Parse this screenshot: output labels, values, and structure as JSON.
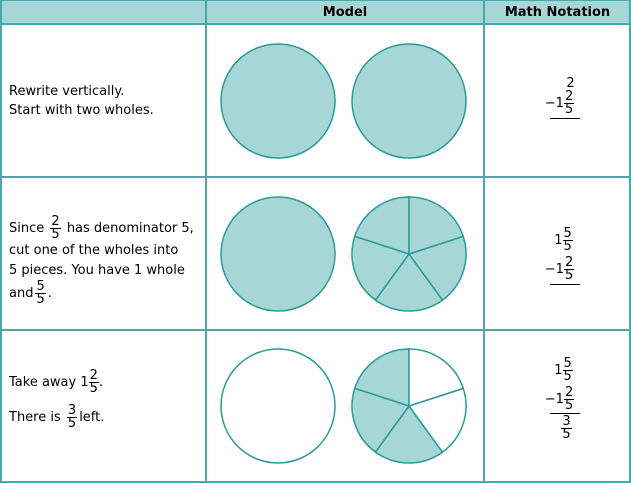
{
  "headers": [
    "",
    "Model",
    "Math Notation"
  ],
  "rows": [
    {
      "text_line1": "Rewrite vertically.",
      "text_line2": "Start with two wholes.",
      "math": {
        "top": "2",
        "minus": "−1",
        "minus_num": "2",
        "minus_den": "5"
      },
      "model": {
        "left_shaded_fifths": 5,
        "right_shaded_fifths": 5,
        "right_divided": false
      }
    },
    {
      "text": {
        "a": "Since",
        "f_num": "2",
        "f_den": "5",
        "b": "has denominator 5,",
        "c": "cut one of the wholes into",
        "d": "5 pieces. You have 1 whole",
        "e": "and",
        "g_num": "5",
        "g_den": "5",
        "h": "."
      },
      "math": {
        "top_whole": "1",
        "top_num": "5",
        "top_den": "5",
        "minus": "−1",
        "minus_num": "2",
        "minus_den": "5"
      },
      "model": {
        "left_shaded_fifths": 5,
        "right_shaded_fifths": 5,
        "right_divided": true
      }
    },
    {
      "text": {
        "a": "Take away 1",
        "f_num": "2",
        "f_den": "5",
        "b": ".",
        "c": "There is",
        "g_num": "3",
        "g_den": "5",
        "d": "left."
      },
      "math": {
        "top_whole": "1",
        "top_num": "5",
        "top_den": "5",
        "minus": "−1",
        "minus_num": "2",
        "minus_den": "5",
        "res_num": "3",
        "res_den": "5"
      },
      "model": {
        "left_shaded_fifths": 0,
        "right_shaded_fifths": 3,
        "right_divided": true
      }
    }
  ],
  "colors": {
    "fill": "#a7d6d7",
    "stroke": "#2b9b97",
    "grid": "#4aa8ac"
  }
}
